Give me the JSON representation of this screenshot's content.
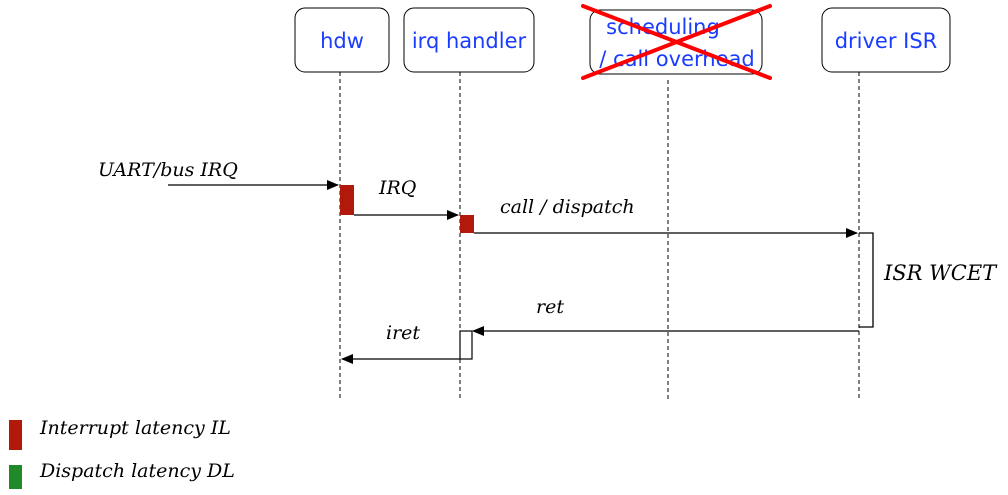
{
  "participants": [
    {
      "id": "hdw",
      "label": "hdw"
    },
    {
      "id": "irq",
      "label": "irq handler"
    },
    {
      "id": "sched",
      "label_line1": "scheduling",
      "label_line2": "/ call overhead"
    },
    {
      "id": "driver",
      "label": "driver ISR"
    }
  ],
  "messages": {
    "uart": "UART/bus IRQ",
    "irq": "IRQ",
    "call": "call / dispatch",
    "ret": "ret",
    "iret": "iret"
  },
  "wcet_label": "ISR WCET",
  "legend": {
    "il": "Interrupt latency IL",
    "dl": "Dispatch latency DL"
  },
  "colors": {
    "participant_text": "#1a3cff",
    "interrupt_latency": "#b11a0a",
    "dispatch_latency": "#1f8a2a",
    "strike": "#ff0000"
  }
}
